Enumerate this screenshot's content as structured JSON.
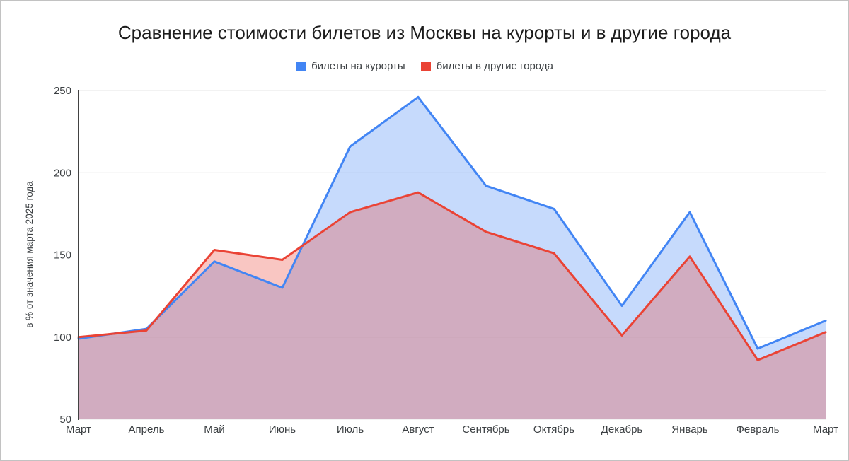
{
  "window": {
    "background": "#ffffff",
    "border_color": "#c2c2c2"
  },
  "chart_data": {
    "type": "area",
    "title": "Сравнение стоимости билетов из Москвы на курорты и в другие города",
    "ylabel": "в % от значения марта 2025 года",
    "xlabel": "",
    "categories": [
      "Март",
      "Апрель",
      "Май",
      "Июнь",
      "Июль",
      "Август",
      "Сентябрь",
      "Октябрь",
      "Декабрь",
      "Январь",
      "Февраль",
      "Март"
    ],
    "series": [
      {
        "name": "билеты на курорты",
        "color": "#4285f4",
        "fill_opacity": 0.3,
        "values": [
          99,
          105,
          146,
          130,
          216,
          246,
          192,
          178,
          119,
          176,
          93,
          110
        ]
      },
      {
        "name": "билеты в другие города",
        "color": "#ea4335",
        "fill_opacity": 0.3,
        "values": [
          100,
          104,
          153,
          147,
          176,
          188,
          164,
          151,
          101,
          149,
          86,
          103
        ]
      }
    ],
    "ylim": [
      50,
      250
    ],
    "yticks": [
      50,
      100,
      150,
      200,
      250
    ],
    "grid": true,
    "legend_position": "top",
    "style": {
      "gridline_color": "#e6e6e6",
      "axis_line_color": "#424242",
      "tick_label_color": "#3c4043",
      "title_color": "#1c1c1c",
      "line_width": 3
    }
  }
}
